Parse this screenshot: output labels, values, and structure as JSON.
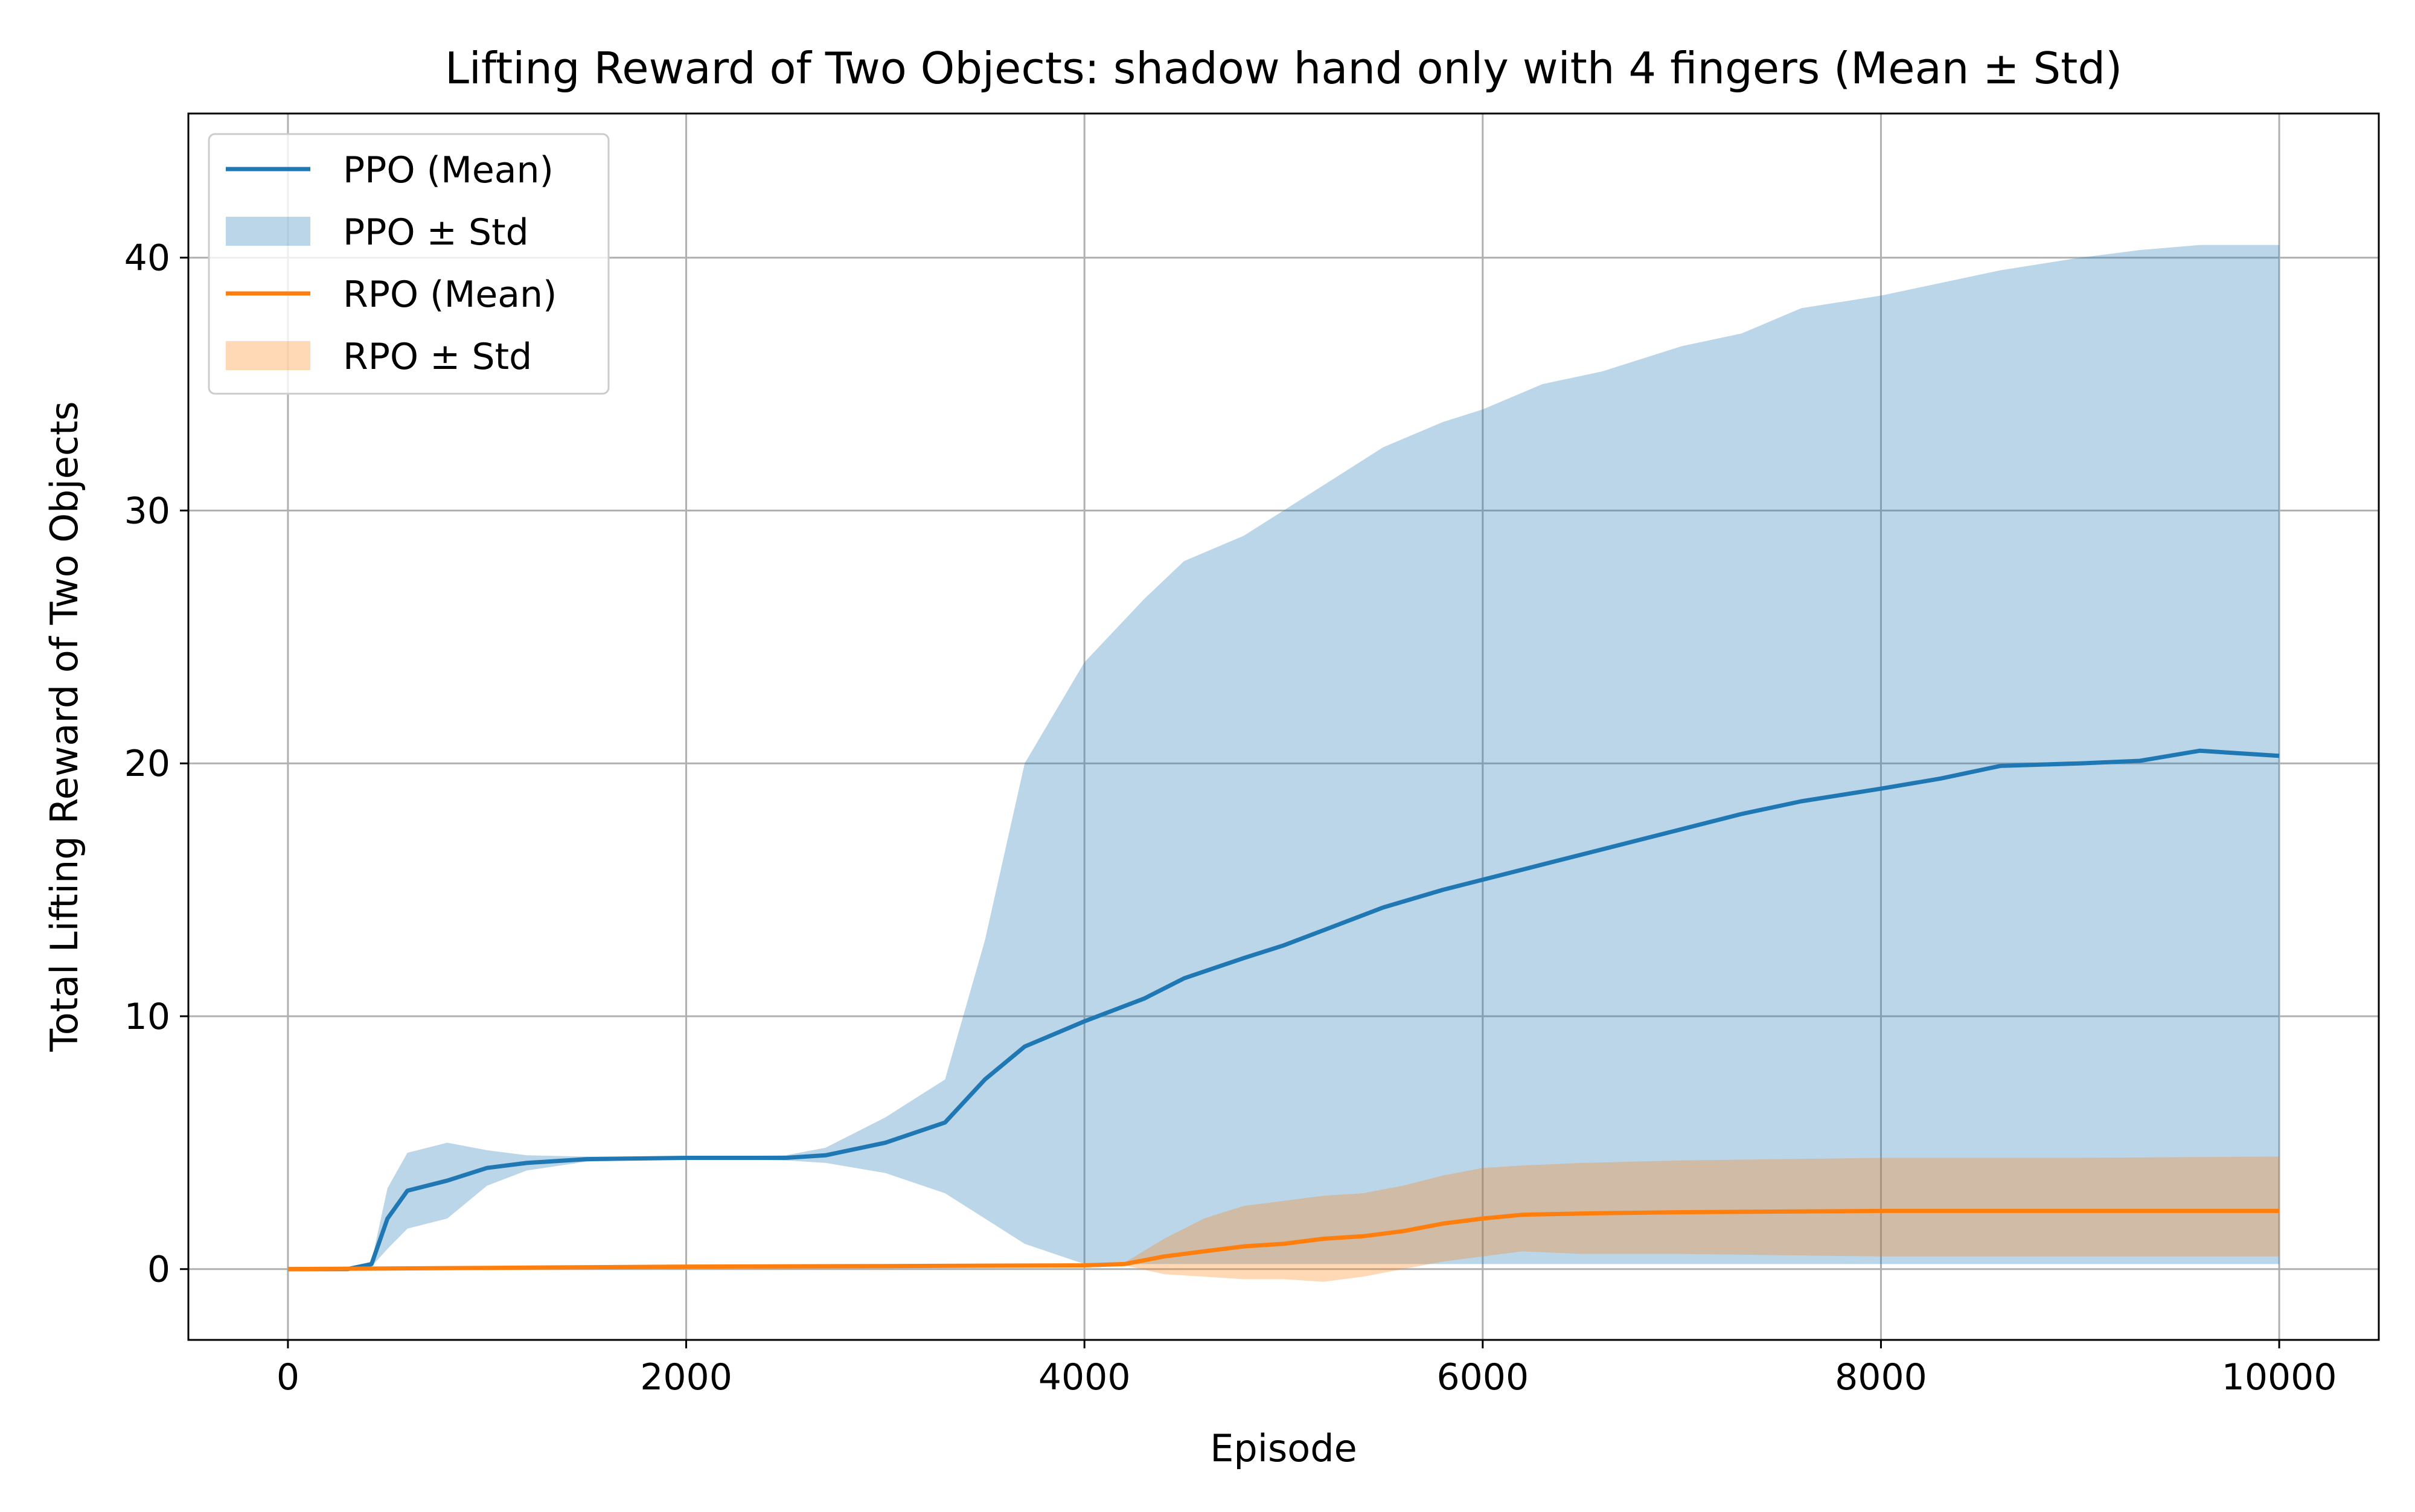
{
  "chart_data": {
    "type": "line",
    "title": "Lifting Reward of Two Objects: shadow hand only with 4 fingers (Mean ± Std)",
    "xlabel": "Episode",
    "ylabel": "Total Lifting Reward of Two Objects",
    "xlim": [
      -500,
      10500
    ],
    "ylim": [
      -2.8,
      45.7
    ],
    "xticks": [
      0,
      2000,
      4000,
      6000,
      8000,
      10000
    ],
    "xtick_labels": [
      "0",
      "2000",
      "4000",
      "6000",
      "8000",
      "10000"
    ],
    "yticks": [
      0,
      10,
      20,
      30,
      40
    ],
    "ytick_labels": [
      "0",
      "10",
      "20",
      "30",
      "40"
    ],
    "grid": true,
    "legend_position": "top-left",
    "legend": [
      "PPO (Mean)",
      "PPO ± Std",
      "RPO (Mean)",
      "RPO ± Std"
    ],
    "series": [
      {
        "name": "PPO (Mean)",
        "band_name": "PPO ± Std",
        "color": "#1f77b4",
        "band_color": "#1f77b4",
        "x": [
          0,
          300,
          420,
          500,
          600,
          800,
          1000,
          1200,
          1500,
          2000,
          2500,
          2700,
          3000,
          3300,
          3500,
          3700,
          4000,
          4300,
          4500,
          4800,
          5000,
          5200,
          5500,
          5800,
          6000,
          6300,
          6600,
          7000,
          7300,
          7600,
          8000,
          8300,
          8600,
          9000,
          9300,
          9600,
          10000
        ],
        "mean": [
          0,
          0,
          0.2,
          2.0,
          3.1,
          3.5,
          4.0,
          4.2,
          4.35,
          4.4,
          4.4,
          4.5,
          5.0,
          5.8,
          7.5,
          8.8,
          9.8,
          10.7,
          11.5,
          12.3,
          12.8,
          13.4,
          14.3,
          15.0,
          15.4,
          16.0,
          16.6,
          17.4,
          18.0,
          18.5,
          19.0,
          19.4,
          19.9,
          20.0,
          20.1,
          20.5,
          20.3
        ],
        "upper": [
          0,
          0,
          0.3,
          3.2,
          4.6,
          5.0,
          4.7,
          4.5,
          4.45,
          4.45,
          4.5,
          4.8,
          6.0,
          7.5,
          13.0,
          20.0,
          24.0,
          26.5,
          28.0,
          29.0,
          30.0,
          31.0,
          32.5,
          33.5,
          34.0,
          35.0,
          35.5,
          36.5,
          37.0,
          38.0,
          38.5,
          39.0,
          39.5,
          40.0,
          40.3,
          40.5,
          40.5
        ],
        "lower": [
          0,
          0,
          0.1,
          0.8,
          1.6,
          2.0,
          3.3,
          3.9,
          4.25,
          4.35,
          4.3,
          4.2,
          3.8,
          3.0,
          2.0,
          1.0,
          0.2,
          0.2,
          0.2,
          0.2,
          0.2,
          0.2,
          0.2,
          0.2,
          0.2,
          0.2,
          0.2,
          0.2,
          0.2,
          0.2,
          0.2,
          0.2,
          0.2,
          0.2,
          0.2,
          0.2,
          0.2
        ]
      },
      {
        "name": "RPO (Mean)",
        "band_name": "RPO ± Std",
        "color": "#ff7f0e",
        "band_color": "#ff7f0e",
        "x": [
          0,
          1000,
          2000,
          3000,
          4000,
          4200,
          4400,
          4600,
          4800,
          5000,
          5200,
          5400,
          5600,
          5800,
          6000,
          6200,
          6500,
          7000,
          8000,
          9000,
          10000
        ],
        "mean": [
          0,
          0.05,
          0.1,
          0.12,
          0.15,
          0.2,
          0.5,
          0.7,
          0.9,
          1.0,
          1.2,
          1.3,
          1.5,
          1.8,
          2.0,
          2.15,
          2.2,
          2.25,
          2.3,
          2.3,
          2.3
        ],
        "upper": [
          0,
          0.05,
          0.1,
          0.12,
          0.15,
          0.25,
          1.2,
          2.0,
          2.5,
          2.7,
          2.9,
          3.0,
          3.3,
          3.7,
          4.0,
          4.1,
          4.2,
          4.3,
          4.4,
          4.4,
          4.45
        ],
        "lower": [
          0,
          0.05,
          0.1,
          0.12,
          0.15,
          0.15,
          -0.2,
          -0.3,
          -0.4,
          -0.4,
          -0.5,
          -0.3,
          0.0,
          0.3,
          0.5,
          0.7,
          0.6,
          0.6,
          0.5,
          0.5,
          0.5
        ]
      }
    ]
  }
}
